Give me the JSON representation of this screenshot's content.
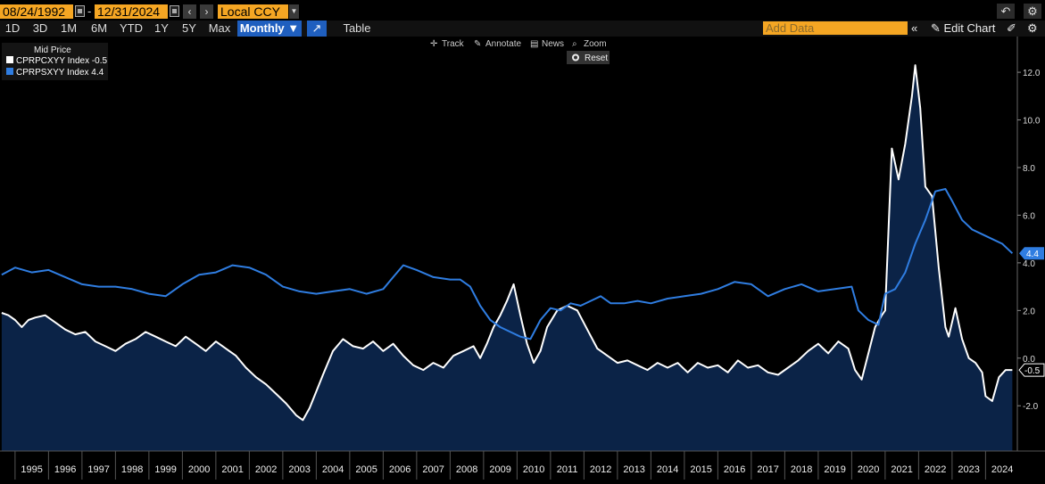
{
  "toolbar": {
    "start_date": "08/24/1992",
    "date_sep": "-",
    "end_date": "12/31/2024",
    "currency": "Local CCY"
  },
  "range_buttons": [
    {
      "label": "1D",
      "active": false
    },
    {
      "label": "3D",
      "active": false
    },
    {
      "label": "1M",
      "active": false
    },
    {
      "label": "6M",
      "active": false
    },
    {
      "label": "YTD",
      "active": false
    },
    {
      "label": "1Y",
      "active": false
    },
    {
      "label": "5Y",
      "active": false
    },
    {
      "label": "Max",
      "active": false
    },
    {
      "label": "Monthly ▼",
      "active": true
    }
  ],
  "table_label": "Table",
  "add_data_placeholder": "Add Data",
  "edit_chart_label": "Edit Chart",
  "chart_tools": {
    "track": "Track",
    "annotate": "Annotate",
    "news": "News",
    "zoom": "Zoom",
    "reset": "Reset"
  },
  "legend": {
    "title": "Mid Price",
    "items": [
      {
        "label": "CPRPCXYY Index",
        "value": "-0.5",
        "color": "#ffffff"
      },
      {
        "label": "CPRPSXYY Index",
        "value": "4.4",
        "color": "#2f7de1"
      }
    ]
  },
  "last_value_tags": [
    {
      "text": "4.4",
      "color": "#2f7de1"
    },
    {
      "text": "-0.5",
      "color": "#ffffff"
    }
  ],
  "chart_data": {
    "type": "line",
    "x_ticks": [
      "1995",
      "1996",
      "1997",
      "1998",
      "1999",
      "2000",
      "2001",
      "2002",
      "2003",
      "2004",
      "2005",
      "2006",
      "2007",
      "2008",
      "2009",
      "2010",
      "2011",
      "2012",
      "2013",
      "2014",
      "2015",
      "2016",
      "2017",
      "2018",
      "2019",
      "2020",
      "2021",
      "2022",
      "2023",
      "2024"
    ],
    "y_ticks": [
      "12.0",
      "10.0",
      "8.0",
      "6.0",
      "4.0",
      "2.0",
      "0.0",
      "-2.0"
    ],
    "ylim": [
      -3.9,
      13.5
    ],
    "xlim": [
      1994.55,
      2024.95
    ],
    "colors": {
      "white": "#ffffff",
      "blue": "#2f7de1",
      "area": "#0b2347",
      "grid": "#3a3a3a"
    },
    "series": [
      {
        "name": "CPRPCXYY Index",
        "area": true,
        "x": [
          1994.6,
          1994.8,
          1995.0,
          1995.2,
          1995.4,
          1995.6,
          1995.9,
          1996.2,
          1996.5,
          1996.8,
          1997.1,
          1997.4,
          1997.7,
          1998.0,
          1998.3,
          1998.6,
          1998.9,
          1999.2,
          1999.5,
          1999.8,
          2000.1,
          2000.4,
          2000.7,
          2001.0,
          2001.3,
          2001.6,
          2001.9,
          2002.2,
          2002.5,
          2002.8,
          2003.1,
          2003.4,
          2003.6,
          2003.8,
          2004.0,
          2004.2,
          2004.5,
          2004.8,
          2005.1,
          2005.4,
          2005.7,
          2006.0,
          2006.3,
          2006.6,
          2006.9,
          2007.2,
          2007.5,
          2007.8,
          2008.1,
          2008.4,
          2008.7,
          2008.9,
          2009.1,
          2009.3,
          2009.5,
          2009.7,
          2009.9,
          2010.1,
          2010.3,
          2010.5,
          2010.7,
          2010.9,
          2011.2,
          2011.5,
          2011.8,
          2012.1,
          2012.4,
          2012.7,
          2013.0,
          2013.3,
          2013.6,
          2013.9,
          2014.2,
          2014.5,
          2014.8,
          2015.1,
          2015.4,
          2015.7,
          2016.0,
          2016.3,
          2016.6,
          2016.9,
          2017.2,
          2017.5,
          2017.8,
          2018.1,
          2018.4,
          2018.7,
          2019.0,
          2019.3,
          2019.6,
          2019.9,
          2020.1,
          2020.3,
          2020.5,
          2020.7,
          2020.9,
          2021.0,
          2021.2,
          2021.4,
          2021.6,
          2021.8,
          2021.9,
          2022.05,
          2022.2,
          2022.4,
          2022.6,
          2022.8,
          2022.9,
          2023.1,
          2023.3,
          2023.5,
          2023.7,
          2023.9,
          2024.0,
          2024.2,
          2024.4,
          2024.6,
          2024.8
        ],
        "y": [
          1.9,
          1.8,
          1.6,
          1.3,
          1.6,
          1.7,
          1.8,
          1.5,
          1.2,
          1.0,
          1.1,
          0.7,
          0.5,
          0.3,
          0.6,
          0.8,
          1.1,
          0.9,
          0.7,
          0.5,
          0.9,
          0.6,
          0.3,
          0.7,
          0.4,
          0.1,
          -0.4,
          -0.8,
          -1.1,
          -1.5,
          -1.9,
          -2.4,
          -2.6,
          -2.1,
          -1.4,
          -0.7,
          0.3,
          0.8,
          0.5,
          0.4,
          0.7,
          0.3,
          0.6,
          0.1,
          -0.3,
          -0.5,
          -0.2,
          -0.4,
          0.1,
          0.3,
          0.5,
          0.0,
          0.6,
          1.3,
          1.8,
          2.4,
          3.1,
          1.8,
          0.6,
          -0.2,
          0.3,
          1.3,
          2.0,
          2.2,
          2.0,
          1.2,
          0.4,
          0.1,
          -0.2,
          -0.1,
          -0.3,
          -0.5,
          -0.2,
          -0.4,
          -0.2,
          -0.6,
          -0.2,
          -0.4,
          -0.3,
          -0.6,
          -0.1,
          -0.4,
          -0.3,
          -0.6,
          -0.7,
          -0.4,
          -0.1,
          0.3,
          0.6,
          0.2,
          0.7,
          0.4,
          -0.5,
          -0.9,
          0.2,
          1.3,
          1.8,
          2.0,
          8.8,
          7.5,
          9.0,
          11.0,
          12.3,
          10.5,
          7.2,
          6.8,
          3.8,
          1.3,
          0.9,
          2.1,
          0.8,
          0.0,
          -0.2,
          -0.6,
          -1.6,
          -1.8,
          -0.8,
          -0.5,
          -0.5
        ]
      },
      {
        "name": "CPRPSXYY Index",
        "area": false,
        "x": [
          1994.6,
          1995.0,
          1995.5,
          1996.0,
          1996.5,
          1997.0,
          1997.5,
          1998.0,
          1998.5,
          1999.0,
          1999.5,
          2000.0,
          2000.5,
          2001.0,
          2001.5,
          2002.0,
          2002.5,
          2003.0,
          2003.5,
          2004.0,
          2004.5,
          2005.0,
          2005.5,
          2006.0,
          2006.3,
          2006.6,
          2007.0,
          2007.5,
          2008.0,
          2008.3,
          2008.6,
          2008.9,
          2009.2,
          2009.5,
          2009.8,
          2010.1,
          2010.4,
          2010.7,
          2011.0,
          2011.3,
          2011.6,
          2011.9,
          2012.2,
          2012.5,
          2012.8,
          2013.2,
          2013.6,
          2014.0,
          2014.5,
          2015.0,
          2015.5,
          2016.0,
          2016.5,
          2017.0,
          2017.5,
          2018.0,
          2018.5,
          2019.0,
          2019.5,
          2020.0,
          2020.2,
          2020.5,
          2020.8,
          2021.0,
          2021.3,
          2021.6,
          2021.9,
          2022.2,
          2022.5,
          2022.8,
          2023.0,
          2023.3,
          2023.6,
          2023.9,
          2024.2,
          2024.5,
          2024.8
        ],
        "y": [
          3.5,
          3.8,
          3.6,
          3.7,
          3.4,
          3.1,
          3.0,
          3.0,
          2.9,
          2.7,
          2.6,
          3.1,
          3.5,
          3.6,
          3.9,
          3.8,
          3.5,
          3.0,
          2.8,
          2.7,
          2.8,
          2.9,
          2.7,
          2.9,
          3.4,
          3.9,
          3.7,
          3.4,
          3.3,
          3.3,
          3.0,
          2.2,
          1.6,
          1.3,
          1.1,
          0.9,
          0.8,
          1.6,
          2.1,
          2.0,
          2.3,
          2.2,
          2.4,
          2.6,
          2.3,
          2.3,
          2.4,
          2.3,
          2.5,
          2.6,
          2.7,
          2.9,
          3.2,
          3.1,
          2.6,
          2.9,
          3.1,
          2.8,
          2.9,
          3.0,
          2.0,
          1.6,
          1.4,
          2.7,
          2.9,
          3.6,
          4.8,
          5.8,
          7.0,
          7.1,
          6.6,
          5.8,
          5.4,
          5.2,
          5.0,
          4.8,
          4.4
        ]
      }
    ]
  }
}
